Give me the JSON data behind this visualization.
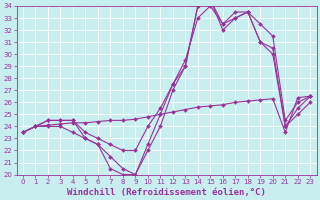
{
  "xlabel": "Windchill (Refroidissement éolien,°C)",
  "bg_color": "#c8eef0",
  "grid_color": "#ffffff",
  "line_color": "#993399",
  "xlim": [
    -0.5,
    23.5
  ],
  "ylim": [
    20,
    34
  ],
  "xticks": [
    0,
    1,
    2,
    3,
    4,
    5,
    6,
    7,
    8,
    9,
    10,
    11,
    12,
    13,
    14,
    15,
    16,
    17,
    18,
    19,
    20,
    21,
    22,
    23
  ],
  "yticks": [
    20,
    21,
    22,
    23,
    24,
    25,
    26,
    27,
    28,
    29,
    30,
    31,
    32,
    33,
    34
  ],
  "lines": [
    {
      "x": [
        0,
        1,
        2,
        3,
        4,
        5,
        6,
        7,
        8,
        9,
        10,
        11,
        12,
        13,
        14,
        15,
        16,
        17,
        18,
        19,
        20,
        21,
        22,
        23
      ],
      "y": [
        23.5,
        24.0,
        24.1,
        24.2,
        24.3,
        24.3,
        24.4,
        24.5,
        24.5,
        24.6,
        24.8,
        25.0,
        25.2,
        25.4,
        25.6,
        25.7,
        25.8,
        26.0,
        26.1,
        26.2,
        26.3,
        23.5,
        26.4,
        26.5
      ]
    },
    {
      "x": [
        0,
        1,
        2,
        3,
        4,
        5,
        6,
        7,
        8,
        9,
        10,
        11,
        12,
        13,
        14,
        15,
        16,
        17,
        18,
        19,
        20,
        21,
        22,
        23
      ],
      "y": [
        23.5,
        24.0,
        24.5,
        24.5,
        24.5,
        23.0,
        22.5,
        21.5,
        20.5,
        20.0,
        22.5,
        25.0,
        27.5,
        29.0,
        34.0,
        34.5,
        32.5,
        33.0,
        33.5,
        31.0,
        30.5,
        24.0,
        25.5,
        26.5
      ]
    },
    {
      "x": [
        0,
        1,
        2,
        3,
        4,
        5,
        6,
        7,
        8,
        9,
        10,
        11,
        12,
        13,
        14,
        15,
        16,
        17,
        18,
        19,
        20,
        21,
        22,
        23
      ],
      "y": [
        23.5,
        24.0,
        24.5,
        24.5,
        24.5,
        23.5,
        23.0,
        22.5,
        22.0,
        22.0,
        24.0,
        25.5,
        27.5,
        29.5,
        33.0,
        34.0,
        32.5,
        33.5,
        33.5,
        32.5,
        31.5,
        24.5,
        26.0,
        26.5
      ]
    },
    {
      "x": [
        0,
        1,
        2,
        3,
        4,
        5,
        6,
        7,
        8,
        9,
        10,
        11,
        12,
        13,
        14,
        15,
        16,
        17,
        18,
        19,
        20,
        21,
        22,
        23
      ],
      "y": [
        23.5,
        24.0,
        24.0,
        24.0,
        23.5,
        23.0,
        22.5,
        20.5,
        20.0,
        20.0,
        22.0,
        24.0,
        27.0,
        29.0,
        34.0,
        34.5,
        32.0,
        33.0,
        33.5,
        31.0,
        30.0,
        24.0,
        25.0,
        26.0
      ]
    }
  ],
  "marker": "D",
  "markersize": 2.0,
  "linewidth": 0.8,
  "xlabel_fontsize": 6.5,
  "tick_fontsize": 5.0,
  "axis_color": "#993399",
  "tick_label_color": "#993399"
}
